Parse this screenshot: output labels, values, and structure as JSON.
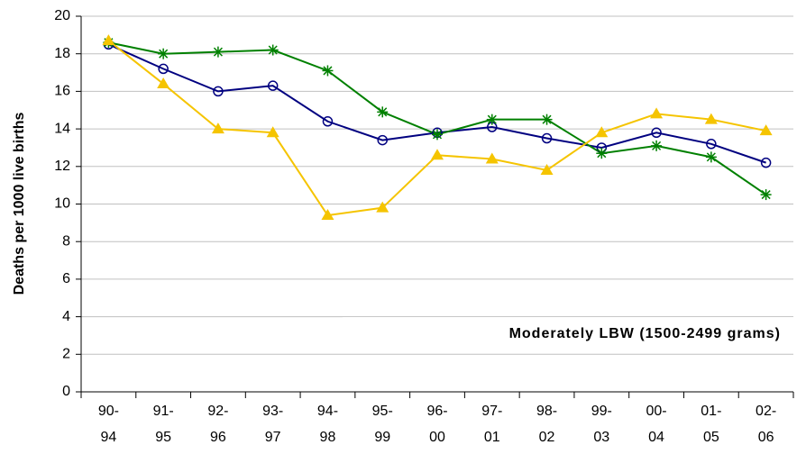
{
  "chart_data": {
    "type": "line",
    "y_label": "Deaths per 1000 live births",
    "annotation": "Moderately LBW (1500-2499 grams)",
    "categories": [
      "90-\n94",
      "91-\n95",
      "92-\n96",
      "93-\n97",
      "94-\n98",
      "95-\n99",
      "96-\n00",
      "97-\n01",
      "98-\n02",
      "99-\n03",
      "00-\n04",
      "01-\n05",
      "02-\n06"
    ],
    "series": [
      {
        "color": "#000080",
        "marker": "circle",
        "values": [
          18.5,
          17.2,
          16.0,
          16.3,
          14.4,
          13.4,
          13.8,
          14.1,
          13.5,
          13.0,
          13.8,
          13.2,
          12.2
        ]
      },
      {
        "color": "#008000",
        "marker": "star",
        "values": [
          18.6,
          18.0,
          18.1,
          18.2,
          17.1,
          14.9,
          13.7,
          14.5,
          14.5,
          12.7,
          13.1,
          12.5,
          10.5
        ]
      },
      {
        "color": "#f5c400",
        "marker": "triangle",
        "values": [
          18.7,
          16.4,
          14.0,
          13.8,
          9.4,
          9.8,
          12.6,
          12.4,
          11.8,
          13.8,
          14.8,
          14.5,
          13.9
        ]
      }
    ],
    "ylim": [
      0,
      20
    ],
    "yticks": [
      0,
      2,
      4,
      6,
      8,
      10,
      12,
      14,
      16,
      18,
      20
    ],
    "grid": true
  }
}
